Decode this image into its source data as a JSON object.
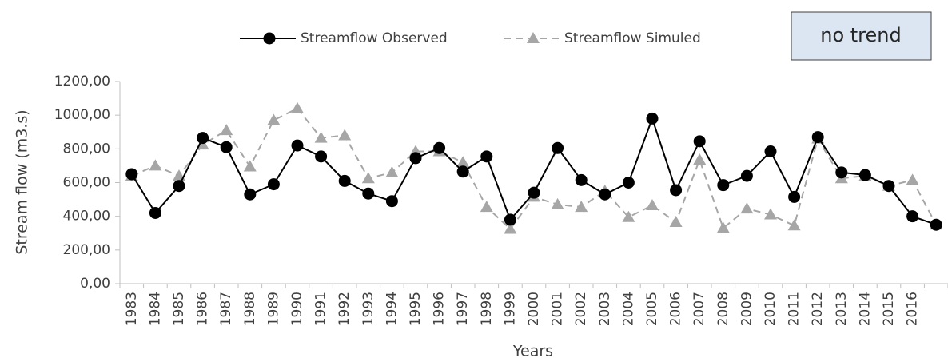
{
  "chart_data": {
    "type": "line",
    "annotation": "no trend",
    "xlabel": "Years",
    "ylabel": "Stream flow (m3.s)",
    "categories": [
      "1983",
      "1984",
      "1985",
      "1986",
      "1987",
      "1988",
      "1989",
      "1990",
      "1991",
      "1992",
      "1993",
      "1994",
      "1995",
      "1996",
      "1997",
      "1998",
      "1999",
      "2000",
      "2001",
      "2002",
      "2003",
      "2004",
      "2005",
      "2006",
      "2007",
      "2008",
      "2009",
      "2010",
      "2011",
      "2012",
      "2013",
      "2014",
      "2015",
      "2016",
      null
    ],
    "series": [
      {
        "name": "Streamflow Observed",
        "color": "#000000",
        "marker": "circle",
        "dashed": false,
        "values": [
          650,
          420,
          580,
          865,
          810,
          530,
          590,
          820,
          755,
          610,
          535,
          490,
          745,
          805,
          665,
          755,
          380,
          540,
          805,
          615,
          530,
          600,
          980,
          555,
          845,
          585,
          640,
          785,
          515,
          870,
          660,
          645,
          580,
          400,
          350
        ]
      },
      {
        "name": "Streamflow Simuled",
        "color": "#a6a6a6",
        "marker": "triangle",
        "dashed": true,
        "values": [
          640,
          700,
          640,
          825,
          910,
          695,
          970,
          1040,
          865,
          880,
          625,
          660,
          785,
          785,
          720,
          455,
          325,
          515,
          470,
          455,
          550,
          395,
          465,
          365,
          735,
          330,
          445,
          410,
          345,
          860,
          625,
          640,
          580,
          615,
          350
        ]
      }
    ],
    "ylim": [
      0,
      1200
    ],
    "yticks": [
      {
        "value": 0,
        "label": "0,00"
      },
      {
        "value": 200,
        "label": "200,00"
      },
      {
        "value": 400,
        "label": "400,00"
      },
      {
        "value": 600,
        "label": "600,00"
      },
      {
        "value": 800,
        "label": "800,00"
      },
      {
        "value": 1000,
        "label": "1000,00"
      },
      {
        "value": 1200,
        "label": "1200,00"
      }
    ],
    "grid": false,
    "legend": "top"
  }
}
